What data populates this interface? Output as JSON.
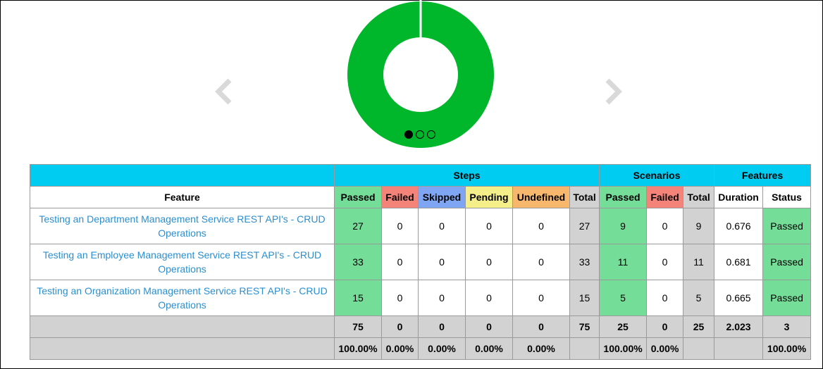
{
  "colors": {
    "donut": "#00b62a",
    "header_bg": "#00cbf0",
    "passed": "#74dd98",
    "failed": "#f4837a",
    "skipped": "#7ea6f3",
    "pending": "#f5ef8a",
    "undefined": "#f7b86e",
    "total": "#d2d2d2",
    "link": "#2a8fd0"
  },
  "carousel": {
    "prev_icon": "chevron-left-icon",
    "next_icon": "chevron-right-icon",
    "slide_count": 3,
    "active_slide": 1,
    "chart_data": {
      "type": "pie",
      "variant": "donut",
      "title": "",
      "categories": [
        "Passed",
        "Failed",
        "Skipped",
        "Pending",
        "Undefined"
      ],
      "values": [
        75,
        0,
        0,
        0,
        0
      ]
    }
  },
  "table": {
    "groups": {
      "steps": "Steps",
      "scenarios": "Scenarios",
      "features": "Features"
    },
    "headers": {
      "feature": "Feature",
      "steps_passed": "Passed",
      "steps_failed": "Failed",
      "steps_skipped": "Skipped",
      "steps_pending": "Pending",
      "steps_undefined": "Undefined",
      "steps_total": "Total",
      "sc_passed": "Passed",
      "sc_failed": "Failed",
      "sc_total": "Total",
      "duration": "Duration",
      "status": "Status"
    },
    "rows": [
      {
        "feature": "Testing an Department Management Service REST API's - CRUD Operations",
        "steps_passed": "27",
        "steps_failed": "0",
        "steps_skipped": "0",
        "steps_pending": "0",
        "steps_undefined": "0",
        "steps_total": "27",
        "sc_passed": "9",
        "sc_failed": "0",
        "sc_total": "9",
        "duration": "0.676",
        "status": "Passed"
      },
      {
        "feature": "Testing an Employee Management Service REST API's - CRUD Operations",
        "steps_passed": "33",
        "steps_failed": "0",
        "steps_skipped": "0",
        "steps_pending": "0",
        "steps_undefined": "0",
        "steps_total": "33",
        "sc_passed": "11",
        "sc_failed": "0",
        "sc_total": "11",
        "duration": "0.681",
        "status": "Passed"
      },
      {
        "feature": "Testing an Organization Management Service REST API's - CRUD Operations",
        "steps_passed": "15",
        "steps_failed": "0",
        "steps_skipped": "0",
        "steps_pending": "0",
        "steps_undefined": "0",
        "steps_total": "15",
        "sc_passed": "5",
        "sc_failed": "0",
        "sc_total": "5",
        "duration": "0.665",
        "status": "Passed"
      }
    ],
    "totals": {
      "steps_passed": "75",
      "steps_failed": "0",
      "steps_skipped": "0",
      "steps_pending": "0",
      "steps_undefined": "0",
      "steps_total": "75",
      "sc_passed": "25",
      "sc_failed": "0",
      "sc_total": "25",
      "duration": "2.023",
      "status": "3"
    },
    "percentages": {
      "steps_passed": "100.00%",
      "steps_failed": "0.00%",
      "steps_skipped": "0.00%",
      "steps_pending": "0.00%",
      "steps_undefined": "0.00%",
      "sc_passed": "100.00%",
      "sc_failed": "0.00%",
      "status": "100.00%"
    }
  }
}
